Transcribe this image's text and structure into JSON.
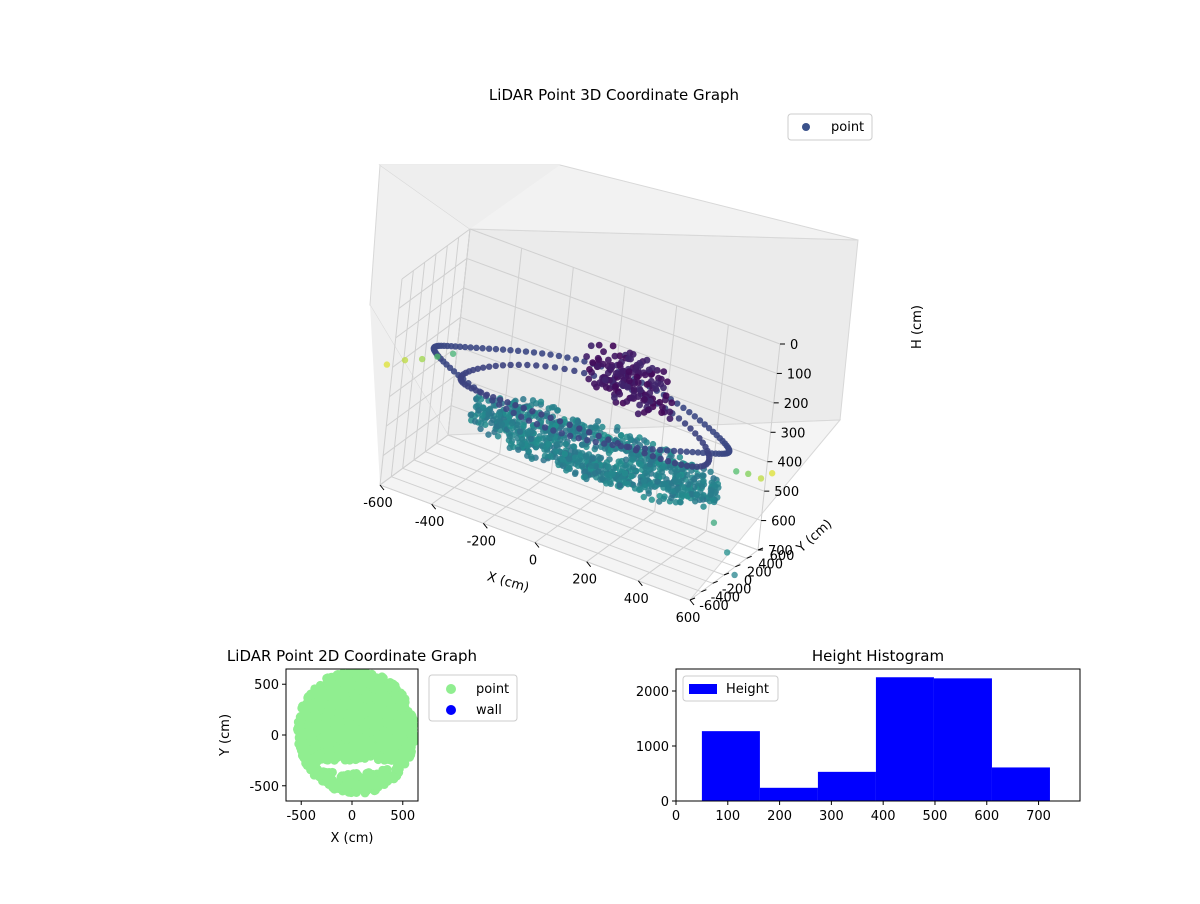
{
  "chart_data": [
    {
      "type": "scatter",
      "title": "LiDAR Point 3D Coordinate Graph",
      "xlabel": "X (cm)",
      "ylabel": "Y (cm)",
      "zlabel": "H (cm)",
      "xlim": [
        -600,
        600
      ],
      "ylim": [
        -600,
        600
      ],
      "zlim": [
        700,
        0
      ],
      "x_ticks": [
        "-600",
        "-400",
        "-200",
        "0",
        "200",
        "400",
        "600"
      ],
      "y_ticks": [
        "-600",
        "-400",
        "-200",
        "0",
        "200",
        "400",
        "600"
      ],
      "z_ticks": [
        "0",
        "100",
        "200",
        "300",
        "400",
        "500",
        "600",
        "700"
      ],
      "legend": {
        "placement": "top-right",
        "entries": [
          "point"
        ]
      },
      "colormap": "viridis",
      "grid": true,
      "description_of_structure": "outer ring of points at radius ~580 cm near height ~300, dense disc at height ~450 cm, dark cluster near top at height ~200 cm"
    },
    {
      "type": "scatter",
      "title": "LiDAR Point 2D Coordinate Graph",
      "xlabel": "X (cm)",
      "ylabel": "Y (cm)",
      "xlim": [
        -650,
        650
      ],
      "ylim": [
        -650,
        650
      ],
      "x_ticks": [
        "-500",
        "0",
        "500"
      ],
      "y_ticks": [
        "-500",
        "0",
        "500"
      ],
      "legend": {
        "placement": "outside-right",
        "entries": [
          {
            "label": "point",
            "color": "#90ee90"
          },
          {
            "label": "wall",
            "color": "#0000ff"
          }
        ]
      },
      "grid": false
    },
    {
      "type": "bar",
      "title": "Height Histogram",
      "series": [
        {
          "name": "Height",
          "color": "#0000ff"
        }
      ],
      "bin_edges": [
        50,
        162,
        274,
        386,
        498,
        610,
        722
      ],
      "values": [
        1270,
        240,
        530,
        2250,
        2230,
        610
      ],
      "xlim": [
        0,
        780
      ],
      "ylim": [
        0,
        2400
      ],
      "x_ticks": [
        "0",
        "100",
        "200",
        "300",
        "400",
        "500",
        "600",
        "700"
      ],
      "y_ticks": [
        "0",
        "1000",
        "2000"
      ],
      "legend": {
        "placement": "top-left",
        "entries": [
          "Height"
        ]
      },
      "grid": false
    }
  ]
}
